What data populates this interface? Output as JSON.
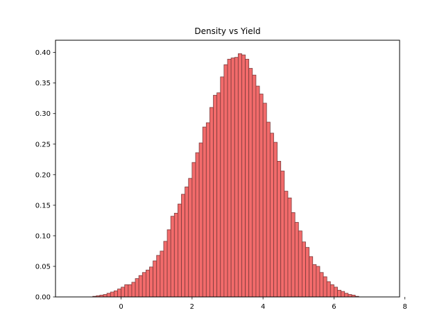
{
  "chart_data": {
    "type": "bar",
    "title": "Density vs Yield",
    "xlabel": "",
    "ylabel": "",
    "xlim": [
      -1.85,
      7.85
    ],
    "ylim": [
      0,
      0.42
    ],
    "xticks": [
      0,
      2,
      4,
      6,
      8
    ],
    "yticks": [
      0.0,
      0.05,
      0.1,
      0.15,
      0.2,
      0.25,
      0.3,
      0.35,
      0.4
    ],
    "bin_width": 0.1,
    "bin_start": -0.8,
    "bar_color": "#f26b6b",
    "edge_color": "#7a3a3a",
    "grid": false,
    "values": [
      0.001,
      0.002,
      0.003,
      0.004,
      0.006,
      0.008,
      0.01,
      0.013,
      0.016,
      0.02,
      0.02,
      0.024,
      0.03,
      0.035,
      0.04,
      0.044,
      0.049,
      0.059,
      0.068,
      0.075,
      0.091,
      0.11,
      0.132,
      0.137,
      0.152,
      0.168,
      0.18,
      0.194,
      0.22,
      0.236,
      0.252,
      0.278,
      0.285,
      0.31,
      0.33,
      0.334,
      0.36,
      0.38,
      0.389,
      0.391,
      0.392,
      0.398,
      0.396,
      0.389,
      0.374,
      0.363,
      0.345,
      0.332,
      0.317,
      0.286,
      0.268,
      0.253,
      0.222,
      0.206,
      0.173,
      0.162,
      0.138,
      0.122,
      0.108,
      0.09,
      0.081,
      0.066,
      0.053,
      0.05,
      0.04,
      0.033,
      0.025,
      0.02,
      0.016,
      0.011,
      0.009,
      0.006,
      0.004,
      0.003,
      0.001
    ]
  }
}
